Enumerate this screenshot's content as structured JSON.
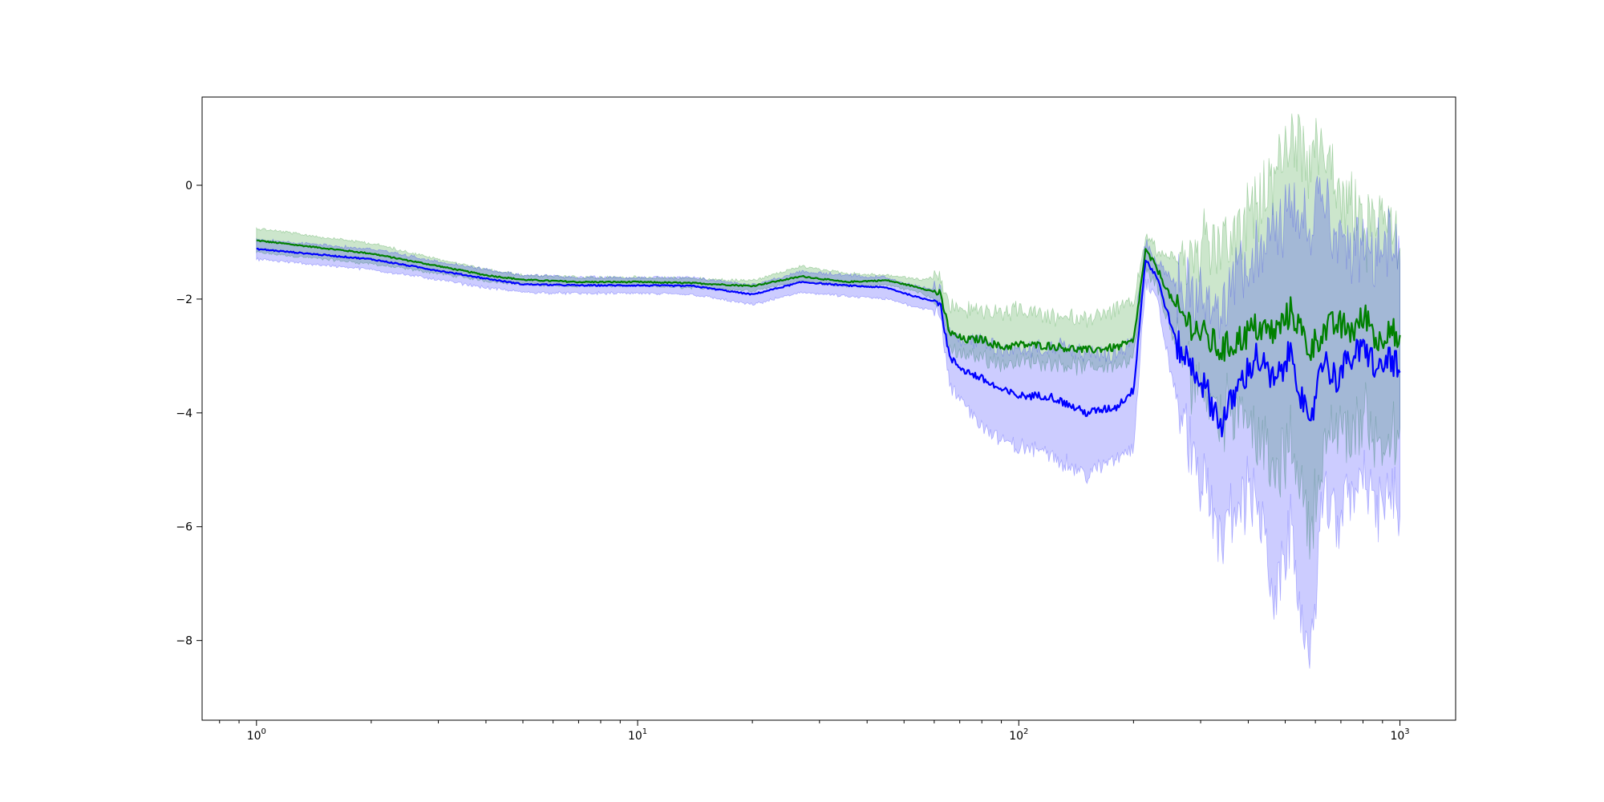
{
  "chart_data": {
    "type": "line",
    "title": "",
    "xlabel": "",
    "ylabel": "",
    "x_scale": "log",
    "xlim": [
      0.72,
      1400
    ],
    "ylim": [
      -9.4,
      1.55
    ],
    "grid": false,
    "x_ticks": [
      {
        "base": "10",
        "exp": "0",
        "value": 1
      },
      {
        "base": "10",
        "exp": "1",
        "value": 10
      },
      {
        "base": "10",
        "exp": "2",
        "value": 100
      },
      {
        "base": "10",
        "exp": "3",
        "value": 1000
      }
    ],
    "y_ticks": [
      {
        "label": "0",
        "value": 0
      },
      {
        "label": "−2",
        "value": -2
      },
      {
        "label": "−4",
        "value": -4
      },
      {
        "label": "−6",
        "value": -6
      },
      {
        "label": "−8",
        "value": -8
      }
    ],
    "series": [
      {
        "color": "#008000",
        "band_color": "#008000",
        "x": [
          1,
          2,
          3,
          4,
          5,
          7,
          10,
          14,
          20,
          27,
          35,
          45,
          55,
          62,
          66,
          72,
          80,
          90,
          100,
          120,
          150,
          180,
          200,
          215,
          230,
          260,
          300,
          340,
          380,
          420,
          470,
          520,
          580,
          620,
          680,
          750,
          820,
          880,
          940,
          1000
        ],
        "y": [
          -0.97,
          -1.2,
          -1.42,
          -1.58,
          -1.66,
          -1.7,
          -1.7,
          -1.72,
          -1.77,
          -1.6,
          -1.7,
          -1.67,
          -1.8,
          -1.9,
          -2.6,
          -2.72,
          -2.7,
          -2.85,
          -2.8,
          -2.82,
          -2.9,
          -2.85,
          -2.75,
          -1.15,
          -1.45,
          -2.2,
          -2.6,
          -2.9,
          -2.7,
          -2.5,
          -2.6,
          -2.2,
          -2.9,
          -2.6,
          -2.45,
          -2.55,
          -2.3,
          -2.8,
          -2.4,
          -2.9
        ],
        "lower": [
          -1.18,
          -1.38,
          -1.55,
          -1.68,
          -1.74,
          -1.77,
          -1.77,
          -1.8,
          -1.85,
          -1.68,
          -1.78,
          -1.75,
          -1.88,
          -2.05,
          -2.88,
          -3.0,
          -3.0,
          -3.15,
          -3.1,
          -3.1,
          -3.2,
          -3.15,
          -3.05,
          -1.5,
          -1.75,
          -2.9,
          -3.5,
          -4.0,
          -3.8,
          -4.3,
          -5.2,
          -4.5,
          -6.0,
          -5.0,
          -4.2,
          -4.4,
          -4.0,
          -4.6,
          -4.3,
          -4.8
        ],
        "upper": [
          -0.76,
          -1.02,
          -1.3,
          -1.48,
          -1.58,
          -1.62,
          -1.62,
          -1.64,
          -1.68,
          -1.42,
          -1.55,
          -1.58,
          -1.65,
          -1.62,
          -2.15,
          -2.2,
          -2.2,
          -2.25,
          -2.2,
          -2.3,
          -2.35,
          -2.2,
          -2.1,
          -0.9,
          -1.15,
          -1.3,
          -1.2,
          -1.05,
          -0.75,
          -0.5,
          0.25,
          0.9,
          0.3,
          0.95,
          -0.2,
          -0.35,
          -0.8,
          -0.4,
          -0.5,
          -1.1
        ]
      },
      {
        "color": "#0000ff",
        "band_color": "#0000ff",
        "x": [
          1,
          2,
          3,
          4,
          5,
          7,
          10,
          14,
          20,
          27,
          35,
          45,
          55,
          62,
          66,
          72,
          80,
          90,
          100,
          120,
          150,
          180,
          200,
          215,
          230,
          260,
          300,
          340,
          380,
          420,
          470,
          520,
          580,
          620,
          680,
          750,
          820,
          880,
          940,
          1000
        ],
        "y": [
          -1.12,
          -1.3,
          -1.5,
          -1.64,
          -1.74,
          -1.76,
          -1.76,
          -1.77,
          -1.92,
          -1.7,
          -1.76,
          -1.8,
          -1.98,
          -2.05,
          -3.05,
          -3.25,
          -3.4,
          -3.6,
          -3.7,
          -3.7,
          -4.0,
          -3.9,
          -3.6,
          -1.3,
          -1.6,
          -2.8,
          -3.4,
          -4.2,
          -3.5,
          -3.0,
          -3.5,
          -2.9,
          -4.4,
          -3.0,
          -3.4,
          -3.0,
          -2.9,
          -3.3,
          -3.0,
          -3.3
        ],
        "lower": [
          -1.3,
          -1.48,
          -1.66,
          -1.8,
          -1.88,
          -1.9,
          -1.9,
          -1.92,
          -2.1,
          -1.88,
          -1.95,
          -2.0,
          -2.15,
          -2.2,
          -3.6,
          -3.85,
          -4.2,
          -4.5,
          -4.6,
          -4.7,
          -5.1,
          -4.8,
          -4.6,
          -1.7,
          -2.0,
          -3.8,
          -5.2,
          -6.2,
          -5.5,
          -5.4,
          -7.4,
          -6.0,
          -8.8,
          -5.6,
          -5.8,
          -5.4,
          -5.0,
          -5.9,
          -5.2,
          -5.8
        ],
        "upper": [
          -0.95,
          -1.12,
          -1.34,
          -1.48,
          -1.58,
          -1.62,
          -1.62,
          -1.63,
          -1.75,
          -1.52,
          -1.58,
          -1.62,
          -1.8,
          -1.82,
          -2.55,
          -2.7,
          -2.75,
          -2.9,
          -2.9,
          -2.8,
          -2.95,
          -2.95,
          -2.7,
          -1.0,
          -1.3,
          -1.8,
          -1.8,
          -2.2,
          -1.5,
          -1.2,
          -0.9,
          -0.2,
          -1.0,
          0.2,
          -0.9,
          -1.1,
          -1.3,
          -1.1,
          -1.0,
          -1.4
        ]
      }
    ]
  }
}
